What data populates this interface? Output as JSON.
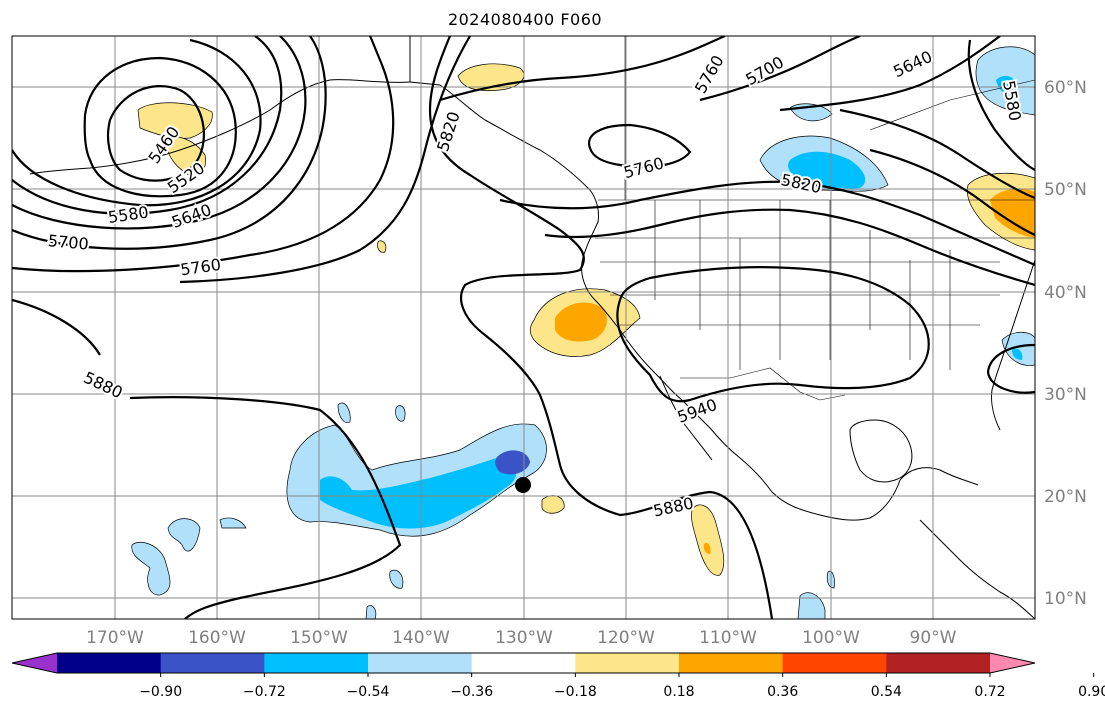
{
  "title": "2024080400 F060",
  "map": {
    "lon_labels": [
      "170°W",
      "160°W",
      "150°W",
      "140°W",
      "130°W",
      "120°W",
      "110°W",
      "100°W",
      "90°W"
    ],
    "lat_labels": [
      "60°N",
      "50°N",
      "40°N",
      "30°N",
      "20°N",
      "10°N"
    ],
    "contour_labels": [
      {
        "text": "5460",
        "name": "contour-label-5460"
      },
      {
        "text": "5520",
        "name": "contour-label-5520"
      },
      {
        "text": "5580",
        "name": "contour-label-5580-west"
      },
      {
        "text": "5640",
        "name": "contour-label-5640-west"
      },
      {
        "text": "5700",
        "name": "contour-label-5700-west"
      },
      {
        "text": "5760",
        "name": "contour-label-5760-west"
      },
      {
        "text": "5820",
        "name": "contour-label-5820-bc"
      },
      {
        "text": "5880",
        "name": "contour-label-5880-west"
      },
      {
        "text": "5760",
        "name": "contour-label-5760-canada"
      },
      {
        "text": "5700",
        "name": "contour-label-5700-north"
      },
      {
        "text": "5760",
        "name": "contour-label-5760-north"
      },
      {
        "text": "5640",
        "name": "contour-label-5640-north"
      },
      {
        "text": "5580",
        "name": "contour-label-5580-east"
      },
      {
        "text": "5820",
        "name": "contour-label-5820-canada"
      },
      {
        "text": "5940",
        "name": "contour-label-5940"
      },
      {
        "text": "5880",
        "name": "contour-label-5880-east"
      }
    ]
  },
  "colorbar": {
    "ticks": [
      "−0.90",
      "−0.72",
      "−0.54",
      "−0.36",
      "−0.18",
      "0.18",
      "0.36",
      "0.54",
      "0.72",
      "0.90"
    ],
    "colors": [
      "#9932cc",
      "#00008b",
      "#3a54c8",
      "#00bfff",
      "#b0e0fa",
      "#ffffff",
      "#fde68a",
      "#ffa500",
      "#ff4500",
      "#b22222",
      "#ff88b0"
    ]
  }
}
